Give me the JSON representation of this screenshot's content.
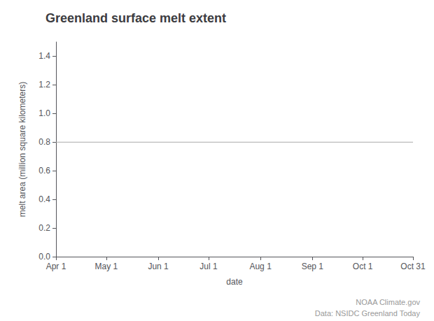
{
  "chart_data": {
    "type": "line",
    "title": "Greenland surface melt extent",
    "xlabel": "date",
    "ylabel": "melt area (million square kilometers)",
    "xlim": [
      91,
      304
    ],
    "xticks": [
      {
        "value": 91,
        "label": "Apr 1"
      },
      {
        "value": 121,
        "label": "May 1"
      },
      {
        "value": 152,
        "label": "Jun 1"
      },
      {
        "value": 182,
        "label": "Jul 1"
      },
      {
        "value": 213,
        "label": "Aug 1"
      },
      {
        "value": 244,
        "label": "Sep 1"
      },
      {
        "value": 274,
        "label": "Oct 1"
      },
      {
        "value": 304,
        "label": "Oct 31"
      }
    ],
    "ylim": [
      0.0,
      1.5
    ],
    "yticks": [
      {
        "value": 0,
        "label": "0.0"
      },
      0.2,
      0.4,
      0.6,
      0.8,
      {
        "value": 1,
        "label": "1.0"
      },
      1.2,
      1.4
    ],
    "hline": {
      "y": 0.8,
      "color": "#aaaaaa"
    },
    "annotations": [
      "NOAA Climate.gov",
      "Data: NSIDC Greenland Today"
    ],
    "grid": false
  }
}
